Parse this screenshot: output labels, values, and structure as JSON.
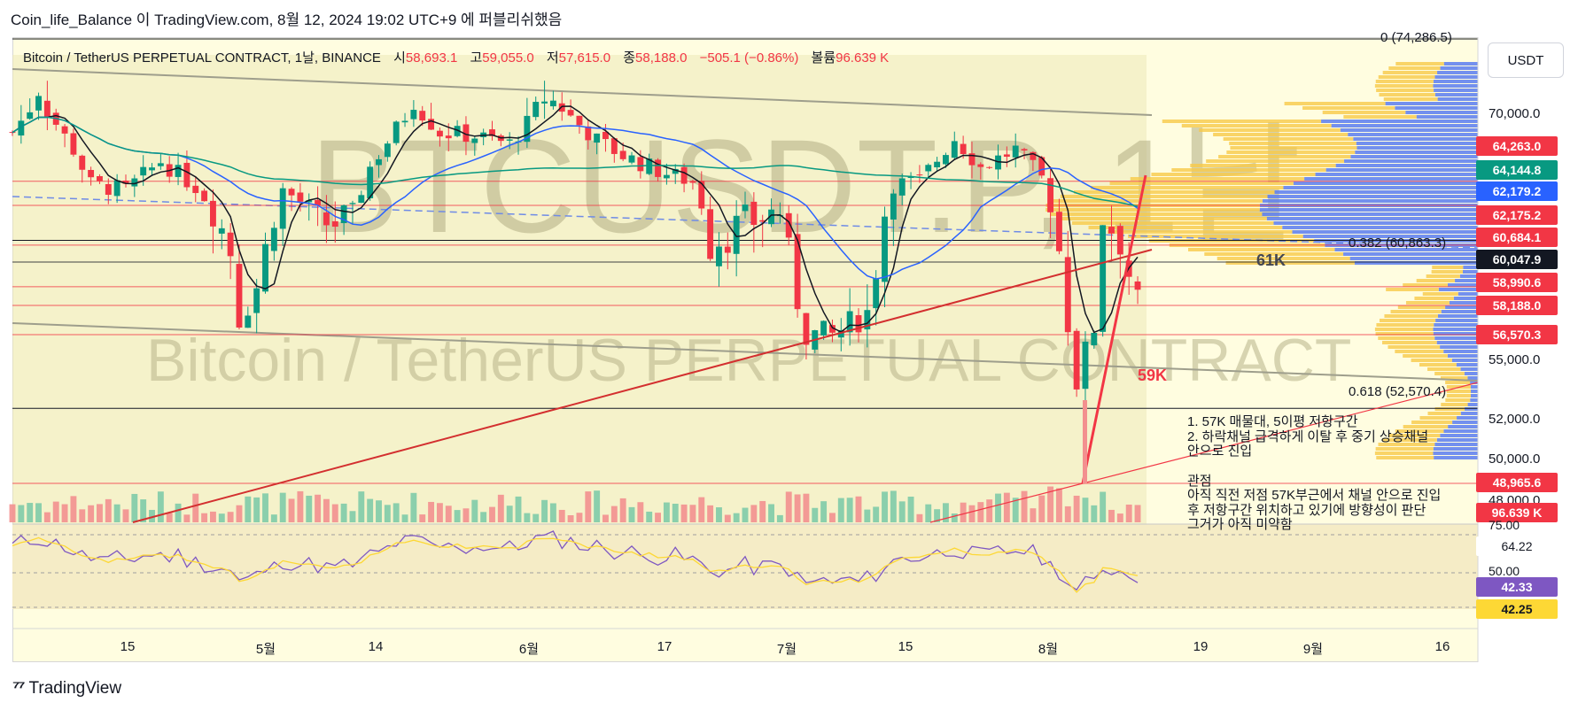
{
  "header": {
    "publisher_line": "Coin_life_Balance 이 TradingView.com, 8월 12, 2024 19:02 UTC+9 에 퍼블리쉬했음"
  },
  "legend": {
    "symbol": "Bitcoin / TetherUS PERPETUAL CONTRACT, 1날, BINANCE",
    "open_label": "시",
    "open": "58,693.1",
    "high_label": "고",
    "high": "59,055.0",
    "low_label": "저",
    "low": "57,615.0",
    "close_label": "종",
    "close": "58,188.0",
    "change": "−505.1 (−0.86%)",
    "volume_label": "볼륨",
    "volume": "96.639 K"
  },
  "currency_button": "USDT",
  "watermark": {
    "ticker": "BTCUSDT.P, 1날",
    "name": "Bitcoin / TetherUS PERPETUAL CONTRACT"
  },
  "annotations": {
    "label_61k": "61K",
    "label_59k": "59K",
    "fib_top": "0 (74,286.5)",
    "fib_382": "0.382 (60,863.3)",
    "fib_618": "0.618 (52,570.4)",
    "note_lines": [
      "1. 57K 매물대, 5이평 저항구간",
      "2. 하락채널 급격하게 이탈 후 중기 상승채널",
      "안으로 진입",
      "",
      "관점",
      "아직 직전 저점 57K부근에서 채널 안으로 진입",
      "후 저항구간 위치하고 있기에 방향성이 판단",
      "그거가 아직 미약함"
    ]
  },
  "price_axis_ticks": [
    "70,000.0",
    "55,000.0",
    "52,000.0",
    "50,000.0",
    "48,000.0"
  ],
  "price_labels": [
    {
      "text": "64,263.0",
      "color": "#f23645"
    },
    {
      "text": "64,144.8",
      "color": "#089981"
    },
    {
      "text": "62,179.2",
      "color": "#2962ff"
    },
    {
      "text": "62,175.2",
      "color": "#f23645"
    },
    {
      "text": "60,684.1",
      "color": "#f23645"
    },
    {
      "text": "60,047.9",
      "color": "#131722"
    },
    {
      "text": "58,990.6",
      "color": "#f23645"
    },
    {
      "text": "58,188.0",
      "color": "#f23645"
    },
    {
      "text": "56,570.3",
      "color": "#f23645"
    },
    {
      "text": "48,965.6",
      "color": "#f23645"
    },
    {
      "text": "96.639 K",
      "color": "#f23645"
    }
  ],
  "rsi_axis": {
    "ticks": [
      "75.00",
      "64.22",
      "50.00"
    ],
    "rsi_value": "42.33",
    "rsi_color": "#7e57c2",
    "ma_value": "42.25",
    "ma_color": "#fdd835"
  },
  "time_axis": [
    "15",
    "5월",
    "14",
    "6월",
    "17",
    "7월",
    "15",
    "8월",
    "19",
    "9월",
    "16"
  ],
  "footer": {
    "brand": "TradingView"
  },
  "chart_data": {
    "type": "candlestick",
    "title": "Bitcoin / TetherUS PERPETUAL CONTRACT, 1날, BINANCE",
    "x_range": [
      "2024-04-05",
      "2024-09-20"
    ],
    "y_range": [
      47000,
      75000
    ],
    "last_ohlc": {
      "open": 58693.1,
      "high": 59055.0,
      "low": 57615.0,
      "close": 58188.0
    },
    "horizontal_levels": [
      64263.0,
      62175.2,
      60684.1,
      60047.9,
      58990.6,
      58188.0,
      56570.3,
      48965.6
    ],
    "fib_levels": [
      {
        "ratio": 0,
        "price": 74286.5
      },
      {
        "ratio": 0.382,
        "price": 60863.3
      },
      {
        "ratio": 0.618,
        "price": 52570.4
      }
    ],
    "moving_averages": [
      {
        "value": 64144.8,
        "color": "#089981"
      },
      {
        "value": 62179.2,
        "color": "#2962ff"
      }
    ],
    "close_path": [
      [
        "2024-04-05",
        68500
      ],
      [
        "2024-04-08",
        71500
      ],
      [
        "2024-04-12",
        67000
      ],
      [
        "2024-04-14",
        64000
      ],
      [
        "2024-04-18",
        63500
      ],
      [
        "2024-04-22",
        66000
      ],
      [
        "2024-04-26",
        63800
      ],
      [
        "2024-04-30",
        60500
      ],
      [
        "2024-05-01",
        57500
      ],
      [
        "2024-05-03",
        59000
      ],
      [
        "2024-05-06",
        63500
      ],
      [
        "2024-05-10",
        61500
      ],
      [
        "2024-05-14",
        61600
      ],
      [
        "2024-05-16",
        65500
      ],
      [
        "2024-05-21",
        71000
      ],
      [
        "2024-05-24",
        68500
      ],
      [
        "2024-05-28",
        68200
      ],
      [
        "2024-06-01",
        67500
      ],
      [
        "2024-06-05",
        71000
      ],
      [
        "2024-06-07",
        70500
      ],
      [
        "2024-06-11",
        67800
      ],
      [
        "2024-06-14",
        66500
      ],
      [
        "2024-06-18",
        65200
      ],
      [
        "2024-06-22",
        64200
      ],
      [
        "2024-06-24",
        60800
      ],
      [
        "2024-06-28",
        61500
      ],
      [
        "2024-07-02",
        62000
      ],
      [
        "2024-07-05",
        56600
      ],
      [
        "2024-07-08",
        56500
      ],
      [
        "2024-07-12",
        57800
      ],
      [
        "2024-07-15",
        64000
      ],
      [
        "2024-07-18",
        64300
      ],
      [
        "2024-07-22",
        68000
      ],
      [
        "2024-07-25",
        65500
      ],
      [
        "2024-07-29",
        67000
      ],
      [
        "2024-08-01",
        64500
      ],
      [
        "2024-08-03",
        60500
      ],
      [
        "2024-08-05",
        54000
      ],
      [
        "2024-08-07",
        57000
      ],
      [
        "2024-08-08",
        61800
      ],
      [
        "2024-08-10",
        60900
      ],
      [
        "2024-08-12",
        58188
      ]
    ],
    "volume_unit": "K",
    "last_volume": 96.639,
    "rsi": {
      "last": 42.33,
      "ma_last": 42.25,
      "upper": 75,
      "mid": 50
    }
  }
}
